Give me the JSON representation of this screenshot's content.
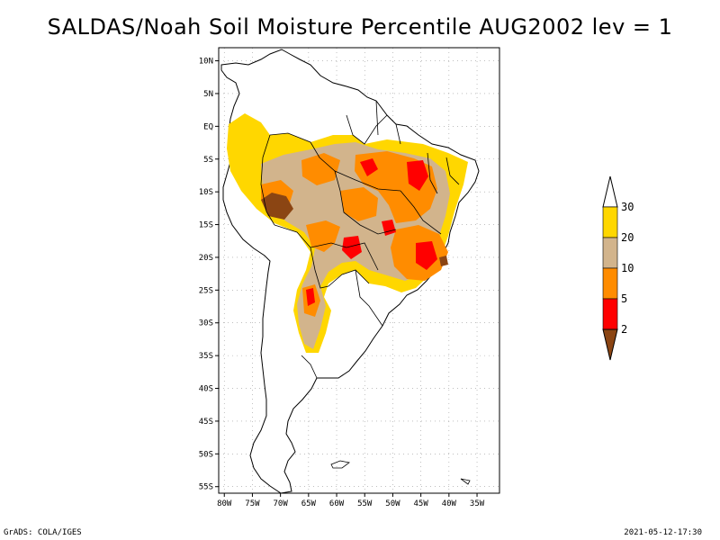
{
  "title": "SALDAS/Noah Soil Moisture Percentile AUG2002 lev = 1",
  "footer": {
    "left": "GrADS: COLA/IGES",
    "right": "2021-05-12-17:30"
  },
  "map": {
    "lon_range": [
      -81,
      -31
    ],
    "lat_range": [
      -56,
      12
    ],
    "lon_ticks": [
      {
        "value": -80,
        "label": "80W"
      },
      {
        "value": -75,
        "label": "75W"
      },
      {
        "value": -70,
        "label": "70W"
      },
      {
        "value": -65,
        "label": "65W"
      },
      {
        "value": -60,
        "label": "60W"
      },
      {
        "value": -55,
        "label": "55W"
      },
      {
        "value": -50,
        "label": "50W"
      },
      {
        "value": -45,
        "label": "45W"
      },
      {
        "value": -40,
        "label": "40W"
      },
      {
        "value": -35,
        "label": "35W"
      }
    ],
    "lat_ticks": [
      {
        "value": 10,
        "label": "10N"
      },
      {
        "value": 5,
        "label": "5N"
      },
      {
        "value": 0,
        "label": "EQ"
      },
      {
        "value": -5,
        "label": "5S"
      },
      {
        "value": -10,
        "label": "10S"
      },
      {
        "value": -15,
        "label": "15S"
      },
      {
        "value": -20,
        "label": "20S"
      },
      {
        "value": -25,
        "label": "25S"
      },
      {
        "value": -30,
        "label": "30S"
      },
      {
        "value": -35,
        "label": "35S"
      },
      {
        "value": -40,
        "label": "40S"
      },
      {
        "value": -45,
        "label": "45S"
      },
      {
        "value": -50,
        "label": "50S"
      },
      {
        "value": -55,
        "label": "55S"
      }
    ],
    "grid": true
  },
  "legend": {
    "levels": [
      {
        "label": "2",
        "color": "#8b4513"
      },
      {
        "label": "5",
        "color": "#ff0000"
      },
      {
        "label": "10",
        "color": "#ff8c00"
      },
      {
        "label": "20",
        "color": "#d2b48c"
      },
      {
        "label": "30",
        "color": "#ffd700"
      }
    ],
    "top_color": "#ffffff"
  },
  "colors": {
    "below_2": "#8b4513",
    "p2_5": "#ff0000",
    "p5_10": "#ff8c00",
    "p10_20": "#d2b48c",
    "p20_30": "#ffd700",
    "above_30": "#ffffff"
  }
}
